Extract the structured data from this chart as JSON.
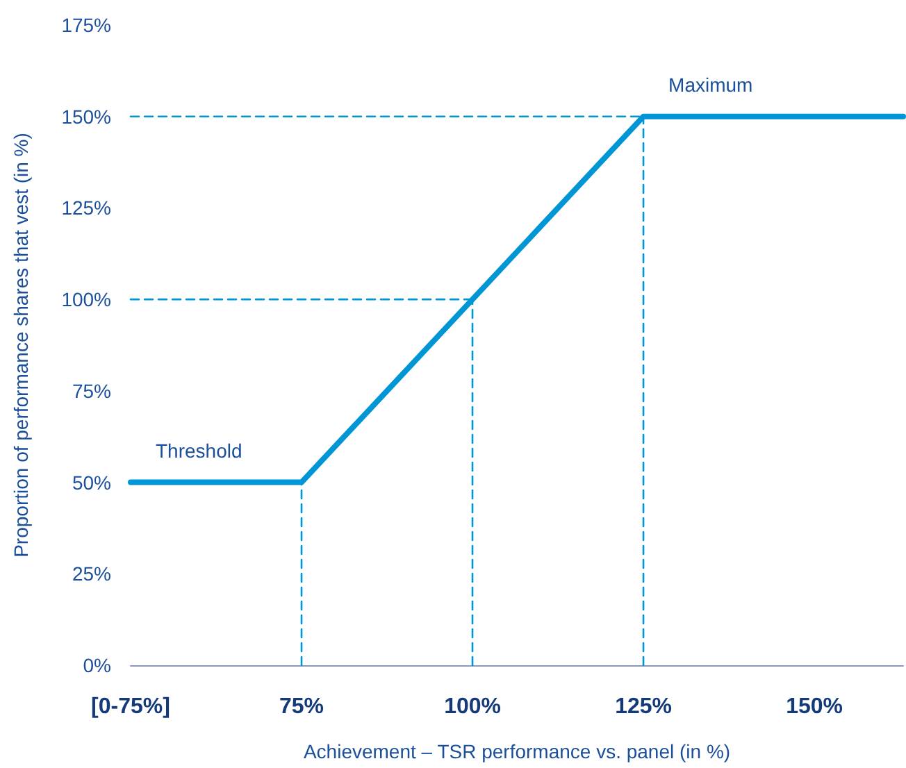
{
  "chart_data": {
    "type": "line",
    "xlabel": "Achievement – TSR performance vs. panel (in %)",
    "ylabel": "Proportion of performance shares that vest (in %)",
    "xlim": [
      50,
      163
    ],
    "xticks": [
      {
        "value": 50,
        "label": "[0-75%]"
      },
      {
        "value": 75,
        "label": "75%"
      },
      {
        "value": 100,
        "label": "100%"
      },
      {
        "value": 125,
        "label": "125%"
      },
      {
        "value": 150,
        "label": "150%"
      }
    ],
    "ylim": [
      0,
      175
    ],
    "yticks": [
      {
        "value": 0,
        "label": "0%"
      },
      {
        "value": 25,
        "label": "25%"
      },
      {
        "value": 50,
        "label": "50%"
      },
      {
        "value": 75,
        "label": "75%"
      },
      {
        "value": 100,
        "label": "100%"
      },
      {
        "value": 125,
        "label": "125%"
      },
      {
        "value": 150,
        "label": "150%"
      },
      {
        "value": 175,
        "label": "175%"
      }
    ],
    "grid": false,
    "marker": "none",
    "series": [
      {
        "color": "#0096d6",
        "x": [
          50,
          75,
          125,
          163
        ],
        "values": [
          50,
          50,
          150,
          150
        ],
        "line_style": "solid"
      },
      {
        "color": "#0096d6",
        "x": [
          75,
          75
        ],
        "values": [
          0,
          50
        ],
        "line_style": "dashed"
      },
      {
        "color": "#0096d6",
        "x": [
          100,
          100
        ],
        "values": [
          0,
          100
        ],
        "line_style": "dashed"
      },
      {
        "color": "#0096d6",
        "x": [
          50,
          100
        ],
        "values": [
          100,
          100
        ],
        "line_style": "dashed"
      },
      {
        "color": "#0096d6",
        "x": [
          125,
          125
        ],
        "values": [
          0,
          150
        ],
        "line_style": "dashed"
      },
      {
        "color": "#0096d6",
        "x": [
          50,
          125
        ],
        "values": [
          150,
          150
        ],
        "line_style": "dashed"
      }
    ],
    "annotations": [
      {
        "text": "Threshold",
        "x": 50,
        "y": 50
      },
      {
        "text": "Maximum",
        "x": 125,
        "y": 150
      }
    ]
  }
}
